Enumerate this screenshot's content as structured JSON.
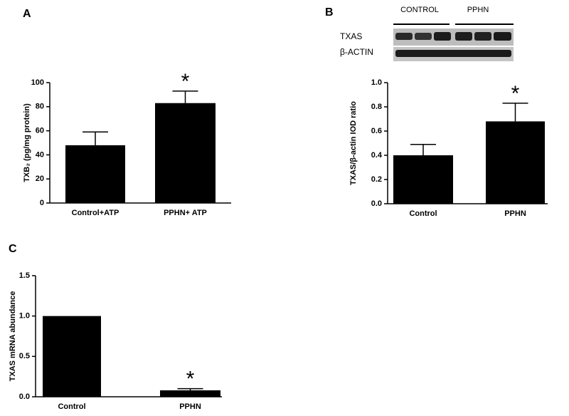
{
  "chart_data": [
    {
      "type": "bar",
      "panel_label": "A",
      "y_label": "TXB₂ (pg/mg protein)",
      "categories": [
        "Control+ATP",
        "PPHN+ ATP"
      ],
      "values": [
        48,
        83
      ],
      "errors": [
        11,
        10
      ],
      "color": "#000000",
      "ylim": [
        0,
        100
      ],
      "yticks": [
        0,
        20,
        40,
        60,
        80,
        100
      ],
      "significance_marker": "*"
    },
    {
      "type": "bar",
      "panel_label": "B",
      "y_label": "TXAS/β-actin IOD ratio",
      "blot": {
        "group_labels": [
          "CONTROL",
          "PPHN"
        ],
        "row_labels": [
          "TXAS",
          "β-ACTIN"
        ]
      },
      "categories": [
        "Control",
        "PPHN"
      ],
      "values": [
        0.4,
        0.68
      ],
      "errors": [
        0.09,
        0.15
      ],
      "color": "#000000",
      "ylim": [
        0,
        1
      ],
      "yticks": [
        {
          "value": 0,
          "label": "0.0"
        },
        0.2,
        0.4,
        0.6,
        0.8,
        {
          "value": 1,
          "label": "1.0"
        }
      ],
      "significance_marker": "*"
    },
    {
      "type": "bar",
      "panel_label": "C",
      "y_label": "TXAS  mRNA abundance",
      "categories": [
        "Control",
        "PPHN"
      ],
      "values": [
        1,
        0.08
      ],
      "errors": [
        null,
        0.02
      ],
      "color": "#000000",
      "ylim": [
        0,
        1.5
      ],
      "yticks": [
        {
          "value": 0,
          "label": "0.0"
        },
        0.5,
        {
          "value": 1,
          "label": "1.0"
        },
        1.5
      ],
      "significance_marker": "*"
    }
  ]
}
